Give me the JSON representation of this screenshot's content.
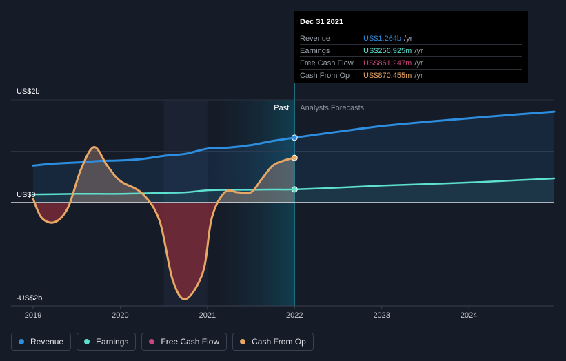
{
  "chart_data": {
    "type": "line",
    "title": "",
    "y_axis": {
      "top_label": "US$2b",
      "zero_label": "US$0",
      "bottom_label": "-US$2b",
      "ylim": [
        -2,
        2
      ],
      "unit": "US$b"
    },
    "x_axis": {
      "ticks": [
        "2019",
        "2020",
        "2021",
        "2022",
        "2023",
        "2024"
      ],
      "xlim": [
        2019.0,
        2024.98
      ]
    },
    "regions": {
      "past_label": "Past",
      "forecast_label": "Analysts Forecasts",
      "divider_x": 2022.0
    },
    "series": [
      {
        "name": "Revenue",
        "color": "#2d8ee0",
        "x": [
          2019.0,
          2019.25,
          2019.5,
          2019.75,
          2020.0,
          2020.25,
          2020.5,
          2020.75,
          2021.0,
          2021.25,
          2021.5,
          2021.75,
          2022.0
        ],
        "values": [
          0.72,
          0.76,
          0.78,
          0.81,
          0.82,
          0.85,
          0.91,
          0.95,
          1.05,
          1.07,
          1.12,
          1.2,
          1.264
        ],
        "forecast_x": [
          2022.0,
          2022.5,
          2023.0,
          2023.5,
          2024.0,
          2024.5,
          2024.98
        ],
        "forecast_values": [
          1.264,
          1.38,
          1.49,
          1.57,
          1.64,
          1.71,
          1.77
        ]
      },
      {
        "name": "Earnings",
        "color": "#5ee0cf",
        "x": [
          2019.0,
          2019.25,
          2019.5,
          2019.75,
          2020.0,
          2020.25,
          2020.5,
          2020.75,
          2021.0,
          2021.25,
          2021.5,
          2021.75,
          2022.0
        ],
        "values": [
          0.16,
          0.165,
          0.17,
          0.17,
          0.17,
          0.18,
          0.19,
          0.2,
          0.24,
          0.25,
          0.25,
          0.255,
          0.257
        ],
        "forecast_x": [
          2022.0,
          2022.5,
          2023.0,
          2023.5,
          2024.0,
          2024.5,
          2024.98
        ],
        "forecast_values": [
          0.257,
          0.29,
          0.33,
          0.36,
          0.39,
          0.43,
          0.47
        ]
      },
      {
        "name": "Free Cash Flow",
        "color": "#c8457e",
        "x": [],
        "values": []
      },
      {
        "name": "Cash From Op",
        "color": "#e9a766",
        "x": [
          2019.0,
          2019.1,
          2019.25,
          2019.4,
          2019.55,
          2019.7,
          2019.85,
          2020.0,
          2020.25,
          2020.45,
          2020.6,
          2020.75,
          2020.95,
          2021.05,
          2021.2,
          2021.35,
          2021.5,
          2021.62,
          2021.75,
          2021.9,
          2022.0
        ],
        "values": [
          0.07,
          -0.3,
          -0.38,
          -0.1,
          0.65,
          1.08,
          0.72,
          0.42,
          0.18,
          -0.35,
          -1.5,
          -1.88,
          -1.35,
          -0.3,
          0.2,
          0.2,
          0.2,
          0.45,
          0.72,
          0.83,
          0.87
        ]
      }
    ],
    "tooltip": {
      "date": "Dec 31 2021",
      "rows": [
        {
          "label": "Revenue",
          "value": "US$1.264b",
          "unit": "/yr",
          "color": "#2d8ee0"
        },
        {
          "label": "Earnings",
          "value": "US$256.925m",
          "unit": "/yr",
          "color": "#5ee0cf"
        },
        {
          "label": "Free Cash Flow",
          "value": "US$861.247m",
          "unit": "/yr",
          "color": "#c8457e"
        },
        {
          "label": "Cash From Op",
          "value": "US$870.455m",
          "unit": "/yr",
          "color": "#e9a766"
        }
      ]
    },
    "legend": [
      {
        "name": "Revenue",
        "color": "#2d8ee0"
      },
      {
        "name": "Earnings",
        "color": "#5ee0cf"
      },
      {
        "name": "Free Cash Flow",
        "color": "#c8457e"
      },
      {
        "name": "Cash From Op",
        "color": "#e9a766"
      }
    ]
  }
}
